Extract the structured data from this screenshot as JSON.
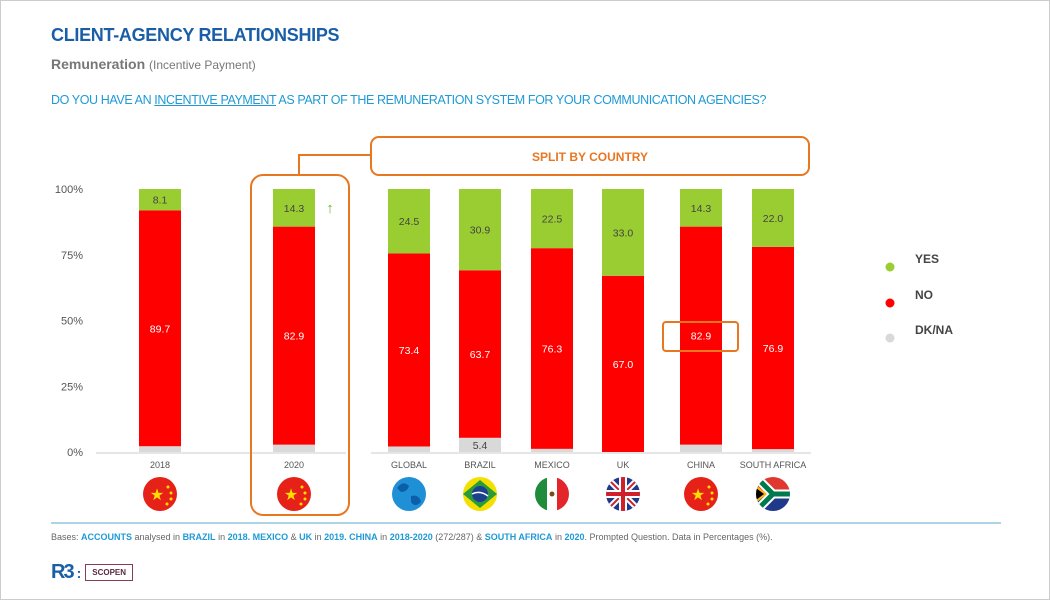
{
  "header": {
    "title": "CLIENT-AGENCY  RELATIONSHIPS",
    "subtitle": "Remuneration",
    "subtitle_note": "(Incentive Payment)",
    "question_pre": "DO YOU HAVE AN ",
    "question_link": "INCENTIVE PAYMENT",
    "question_post": " AS PART OF THE REMUNERATION SYSTEM FOR YOUR COMMUNICATION AGENCIES?"
  },
  "chart_data": {
    "type": "bar",
    "stacked": true,
    "ylim": [
      0,
      100
    ],
    "yticks": [
      "0%",
      "25%",
      "50%",
      "75%",
      "100%"
    ],
    "categories": [
      "2018",
      "2020",
      "GLOBAL",
      "BRAZIL",
      "MEXICO",
      "UK",
      "CHINA",
      "SOUTH AFRICA"
    ],
    "series": [
      {
        "name": "DK/NA",
        "color": "#d9d9d9",
        "values": [
          2.2,
          2.8,
          2.1,
          5.4,
          1.2,
          0,
          2.8,
          1.1
        ],
        "labels_shown": [
          false,
          false,
          false,
          true,
          false,
          false,
          false,
          false
        ]
      },
      {
        "name": "NO",
        "color": "#ff0000",
        "values": [
          89.7,
          82.9,
          73.4,
          63.7,
          76.3,
          67.0,
          82.9,
          76.9
        ]
      },
      {
        "name": "YES",
        "color": "#9acd32",
        "values": [
          8.1,
          14.3,
          24.5,
          30.9,
          22.5,
          33.0,
          14.3,
          22.0
        ]
      }
    ],
    "legend": {
      "placement": "right",
      "entries": [
        "YES",
        "NO",
        "DK/NA"
      ]
    },
    "annotations": {
      "split_label": "SPLIT BY COUNTRY",
      "increase_arrow": "2020",
      "highlight_box": [
        "2020"
      ],
      "highlight_value": "CHINA NO 82.9"
    },
    "flags": [
      "china-flag",
      "china-flag",
      "globe",
      "brazil-flag",
      "mexico-flag",
      "uk-flag",
      "china-flag",
      "south-africa-flag"
    ],
    "accent_color": "#e87722"
  },
  "footer": {
    "bases": [
      {
        "t": "Bases: ",
        "b": false
      },
      {
        "t": "ACCOUNTS",
        "b": true
      },
      {
        "t": " analysed in ",
        "b": false
      },
      {
        "t": "BRAZIL",
        "b": true
      },
      {
        "t": " in ",
        "b": false
      },
      {
        "t": "2018. MEXICO",
        "b": true
      },
      {
        "t": " & ",
        "b": false
      },
      {
        "t": "UK",
        "b": true
      },
      {
        "t": " in ",
        "b": false
      },
      {
        "t": "2019. CHINA",
        "b": true
      },
      {
        "t": " in ",
        "b": false
      },
      {
        "t": "2018-2020",
        "b": true
      },
      {
        "t": " (272/287) & ",
        "b": false
      },
      {
        "t": "SOUTH AFRICA",
        "b": true
      },
      {
        "t": " in ",
        "b": false
      },
      {
        "t": "2020",
        "b": true
      },
      {
        "t": ". Prompted Question. Data in Percentages (%).",
        "b": false
      }
    ],
    "logo_r3": "R3",
    "logo_scopen": "SCOPEN"
  }
}
